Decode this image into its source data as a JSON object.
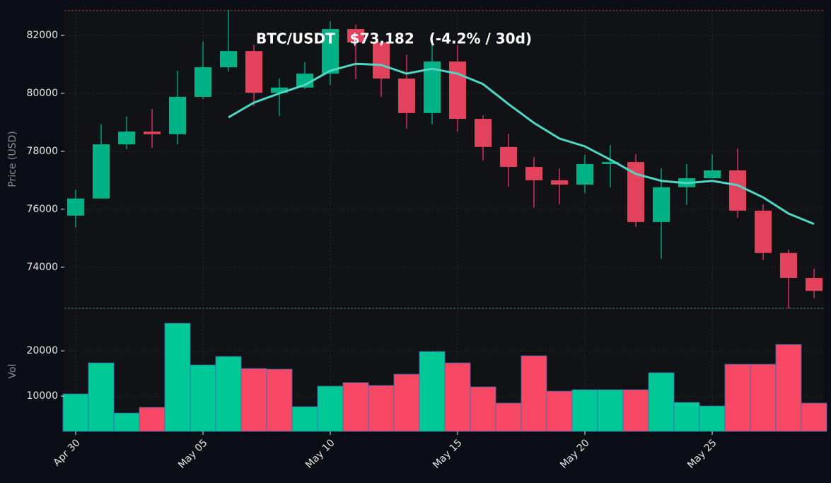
{
  "chart_data": {
    "type": "candlestick",
    "title": "BTC/USDT   $73,182   (-4.2% / 30d)",
    "ylabel": "Price (USD)",
    "categories": [
      "Apr 30",
      null,
      null,
      null,
      null,
      "May 05",
      null,
      null,
      null,
      null,
      "May 10",
      null,
      null,
      null,
      null,
      "May 15",
      null,
      null,
      null,
      null,
      "May 20",
      null,
      null,
      null,
      null,
      "May 25",
      null,
      null,
      null,
      null
    ],
    "open": [
      75780,
      76370,
      78240,
      78680,
      78590,
      79880,
      80900,
      81460,
      80020,
      80200,
      80680,
      82220,
      81760,
      80510,
      79320,
      81100,
      79120,
      78150,
      77460,
      77000,
      76850,
      77560,
      77630,
      75560,
      76760,
      77070,
      77340,
      75950,
      74490,
      73630
    ],
    "high": [
      76680,
      78930,
      79200,
      79460,
      80780,
      81800,
      82880,
      81680,
      80510,
      81070,
      82490,
      82370,
      81800,
      81340,
      82050,
      81660,
      79240,
      78610,
      77800,
      77410,
      77880,
      78220,
      77900,
      77410,
      77560,
      77900,
      78100,
      76170,
      74610,
      73950
    ],
    "low": [
      75370,
      76370,
      78070,
      78120,
      78240,
      79800,
      80760,
      79560,
      79220,
      80150,
      80290,
      80490,
      79880,
      78780,
      78930,
      78680,
      77680,
      76780,
      76050,
      76170,
      76560,
      76760,
      75390,
      74290,
      76150,
      77070,
      75710,
      74240,
      72580,
      72930
    ],
    "close": [
      76370,
      78240,
      78680,
      78590,
      79880,
      80900,
      81460,
      80020,
      80200,
      80680,
      82220,
      81760,
      80510,
      79320,
      81100,
      79120,
      78150,
      77460,
      77000,
      76850,
      77560,
      77630,
      75560,
      76760,
      77070,
      77340,
      75950,
      74490,
      73630,
      73182
    ],
    "up_color": "#00b386",
    "down_color": "#e3425c",
    "ma": {
      "color": "#4fd8c4",
      "values": [
        null,
        null,
        null,
        null,
        null,
        null,
        79170,
        79680,
        80000,
        80290,
        80780,
        81020,
        80980,
        80680,
        80850,
        80680,
        80320,
        79630,
        78980,
        78440,
        78170,
        77710,
        77220,
        76980,
        76900,
        76980,
        76830,
        76410,
        75850,
        75490
      ]
    },
    "ylim": [
      72580,
      82880
    ],
    "yticks": [
      74000,
      76000,
      78000,
      80000,
      82000
    ],
    "grid": true,
    "volume": {
      "ylabel": "Vol",
      "values": [
        10470,
        17340,
        6250,
        7500,
        26090,
        16880,
        18750,
        16090,
        15940,
        7660,
        12190,
        12970,
        12340,
        14840,
        19840,
        17340,
        12030,
        8440,
        18910,
        11090,
        11410,
        11410,
        11410,
        15160,
        8590,
        7810,
        17030,
        17030,
        21410,
        8440
      ],
      "colors": [
        "#00c896",
        "#00c896",
        "#00c896",
        "#f74866",
        "#00c896",
        "#00c896",
        "#00c896",
        "#f74866",
        "#f74866",
        "#00c896",
        "#00c896",
        "#f74866",
        "#f74866",
        "#f74866",
        "#00c896",
        "#f74866",
        "#f74866",
        "#f74866",
        "#f74866",
        "#f74866",
        "#00c896",
        "#00c896",
        "#f74866",
        "#00c896",
        "#00c896",
        "#00c896",
        "#f74866",
        "#f74866",
        "#f74866",
        "#f74866"
      ],
      "ylim": [
        2200,
        29400
      ],
      "yticks": [
        10000,
        20000
      ]
    }
  }
}
